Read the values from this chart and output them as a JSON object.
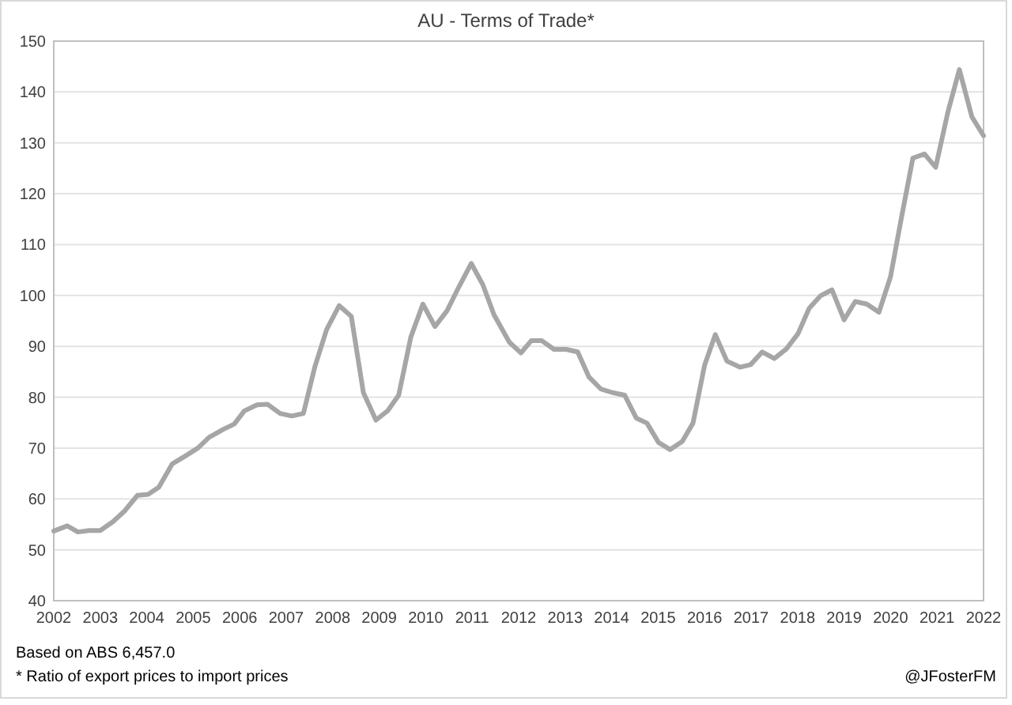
{
  "chart_data": {
    "type": "line",
    "title": "AU - Terms of Trade*",
    "x": [
      2002.0,
      2002.29,
      2002.52,
      2002.76,
      2003.0,
      2003.27,
      2003.52,
      2003.8,
      2004.03,
      2004.26,
      2004.55,
      2004.84,
      2005.1,
      2005.34,
      2005.65,
      2005.88,
      2006.1,
      2006.37,
      2006.6,
      2006.87,
      2007.12,
      2007.37,
      2007.62,
      2007.87,
      2008.14,
      2008.4,
      2008.66,
      2008.93,
      2009.18,
      2009.42,
      2009.68,
      2009.94,
      2010.2,
      2010.46,
      2010.71,
      2010.98,
      2011.23,
      2011.47,
      2011.8,
      2012.05,
      2012.27,
      2012.5,
      2012.76,
      2013.02,
      2013.27,
      2013.51,
      2013.77,
      2014.02,
      2014.28,
      2014.53,
      2014.76,
      2015.01,
      2015.26,
      2015.52,
      2015.75,
      2016.0,
      2016.23,
      2016.48,
      2016.76,
      2016.99,
      2017.24,
      2017.5,
      2017.76,
      2018.01,
      2018.25,
      2018.49,
      2018.74,
      2019.0,
      2019.24,
      2019.49,
      2019.75,
      2020.0,
      2020.23,
      2020.48,
      2020.73,
      2020.97,
      2021.24,
      2021.48,
      2021.75,
      2022.0
    ],
    "series": [
      {
        "color": "#a6a6a6",
        "values": [
          53.7,
          54.7,
          53.5,
          53.8,
          53.8,
          55.5,
          57.6,
          60.7,
          60.9,
          62.3,
          66.9,
          68.5,
          70.0,
          72.1,
          73.7,
          74.7,
          77.3,
          78.5,
          78.6,
          76.8,
          76.3,
          76.8,
          86.1,
          93.3,
          98.0,
          95.9,
          80.9,
          75.5,
          77.3,
          80.4,
          91.8,
          98.3,
          93.9,
          97.0,
          101.6,
          106.3,
          102.1,
          96.2,
          90.8,
          88.7,
          91.1,
          91.1,
          89.4,
          89.4,
          88.9,
          84.0,
          81.6,
          80.9,
          80.4,
          75.9,
          74.9,
          71.1,
          69.7,
          71.3,
          74.9,
          86.3,
          92.3,
          87.1,
          85.9,
          86.4,
          88.9,
          87.6,
          89.5,
          92.5,
          97.5,
          99.9,
          101.1,
          95.2,
          98.8,
          98.3,
          96.7,
          103.7,
          115.1,
          127.0,
          127.8,
          125.2,
          136.3,
          144.4,
          135.1,
          131.4
        ]
      }
    ],
    "xlim": [
      2002,
      2022
    ],
    "xticks": [
      2002,
      2003,
      2004,
      2005,
      2006,
      2007,
      2008,
      2009,
      2010,
      2011,
      2012,
      2013,
      2014,
      2015,
      2016,
      2017,
      2018,
      2019,
      2020,
      2021,
      2022
    ],
    "ylim": [
      40,
      150
    ],
    "yticks": [
      40,
      50,
      60,
      70,
      80,
      90,
      100,
      110,
      120,
      130,
      140,
      150
    ],
    "grid": "y",
    "marker": "none",
    "line_style": "solid",
    "annotations": [
      "Based on ABS 6,457.0",
      "* Ratio of export prices to import prices",
      "@JFosterFM"
    ]
  }
}
